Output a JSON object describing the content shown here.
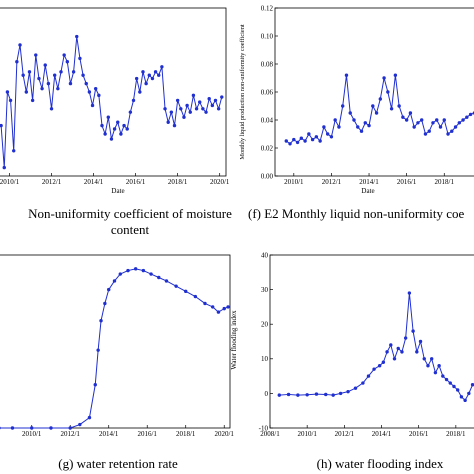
{
  "chart_data": [
    {
      "id": "e",
      "type": "line",
      "caption_line1": "Non-uniformity coefficient of moisture",
      "caption_line2": "content",
      "xlabel": "Date",
      "ylabel": "",
      "x_ticks": [
        "2010/1",
        "2012/1",
        "2014/1",
        "2016/1",
        "2018/1",
        "2020/1"
      ],
      "y_ticks": [],
      "xlim": [
        2009.5,
        2020.3
      ],
      "ylim": [
        0,
        1
      ],
      "grid": false,
      "color": "#1f2fd0",
      "series": [
        {
          "x": [
            2009.6,
            2009.75,
            2009.9,
            2010.05,
            2010.2,
            2010.35,
            2010.5,
            2010.65,
            2010.8,
            2010.95,
            2011.1,
            2011.25,
            2011.4,
            2011.55,
            2011.7,
            2011.85,
            2012.0,
            2012.15,
            2012.3,
            2012.45,
            2012.6,
            2012.75,
            2012.9,
            2013.05,
            2013.2,
            2013.35,
            2013.5,
            2013.65,
            2013.8,
            2013.95,
            2014.1,
            2014.25,
            2014.4,
            2014.55,
            2014.7,
            2014.85,
            2015.0,
            2015.15,
            2015.3,
            2015.45,
            2015.6,
            2015.75,
            2015.9,
            2016.05,
            2016.2,
            2016.35,
            2016.5,
            2016.65,
            2016.8,
            2016.95,
            2017.1,
            2017.25,
            2017.4,
            2017.55,
            2017.7,
            2017.85,
            2018.0,
            2018.15,
            2018.3,
            2018.45,
            2018.6,
            2018.75,
            2018.9,
            2019.05,
            2019.2,
            2019.35,
            2019.5,
            2019.65,
            2019.8,
            2019.95,
            2020.1
          ],
          "y": [
            0.3,
            0.05,
            0.5,
            0.45,
            0.15,
            0.68,
            0.78,
            0.6,
            0.5,
            0.62,
            0.45,
            0.72,
            0.58,
            0.52,
            0.66,
            0.55,
            0.4,
            0.6,
            0.52,
            0.62,
            0.72,
            0.68,
            0.55,
            0.62,
            0.83,
            0.7,
            0.6,
            0.55,
            0.5,
            0.42,
            0.52,
            0.48,
            0.3,
            0.25,
            0.35,
            0.22,
            0.28,
            0.32,
            0.25,
            0.3,
            0.28,
            0.38,
            0.45,
            0.58,
            0.5,
            0.62,
            0.55,
            0.6,
            0.58,
            0.62,
            0.6,
            0.65,
            0.4,
            0.32,
            0.38,
            0.3,
            0.45,
            0.4,
            0.35,
            0.42,
            0.38,
            0.48,
            0.4,
            0.44,
            0.4,
            0.38,
            0.46,
            0.42,
            0.45,
            0.4,
            0.47
          ]
        }
      ]
    },
    {
      "id": "f",
      "type": "line",
      "caption": "(f) E2 Monthly liquid non-uniformity coe",
      "xlabel": "Date",
      "ylabel": "Monthly liquid production non-uniformity coefficient",
      "x_ticks": [
        "2010/1",
        "2012/1",
        "2014/1",
        "2016/1",
        "2018/1"
      ],
      "y_ticks": [
        "0.00",
        "0.02",
        "0.04",
        "0.06",
        "0.08",
        "0.10",
        "0.12"
      ],
      "xlim": [
        2009.0,
        2019.9
      ],
      "ylim": [
        0,
        0.12
      ],
      "grid": false,
      "color": "#1f2fd0",
      "series": [
        {
          "x": [
            2009.6,
            2009.8,
            2010.0,
            2010.2,
            2010.4,
            2010.6,
            2010.8,
            2011.0,
            2011.2,
            2011.4,
            2011.6,
            2011.8,
            2012.0,
            2012.2,
            2012.4,
            2012.6,
            2012.8,
            2013.0,
            2013.2,
            2013.4,
            2013.6,
            2013.8,
            2014.0,
            2014.2,
            2014.4,
            2014.6,
            2014.8,
            2015.0,
            2015.2,
            2015.4,
            2015.6,
            2015.8,
            2016.0,
            2016.2,
            2016.4,
            2016.6,
            2016.8,
            2017.0,
            2017.2,
            2017.4,
            2017.6,
            2017.8,
            2018.0,
            2018.2,
            2018.4,
            2018.6,
            2018.8,
            2019.0,
            2019.2,
            2019.4,
            2019.6
          ],
          "y": [
            0.025,
            0.023,
            0.026,
            0.024,
            0.027,
            0.025,
            0.03,
            0.026,
            0.028,
            0.025,
            0.035,
            0.03,
            0.028,
            0.04,
            0.035,
            0.05,
            0.072,
            0.045,
            0.04,
            0.035,
            0.032,
            0.038,
            0.036,
            0.05,
            0.045,
            0.055,
            0.07,
            0.06,
            0.048,
            0.072,
            0.05,
            0.042,
            0.04,
            0.045,
            0.035,
            0.038,
            0.04,
            0.03,
            0.032,
            0.038,
            0.04,
            0.035,
            0.04,
            0.03,
            0.032,
            0.035,
            0.038,
            0.04,
            0.042,
            0.044,
            0.045
          ]
        }
      ]
    },
    {
      "id": "g",
      "type": "line",
      "caption": "(g) water retention rate",
      "xlabel": "",
      "ylabel": "",
      "x_ticks": [
        "2010/1",
        "2012/1",
        "2014/1",
        "2016/1",
        "2018/1",
        "2020/1"
      ],
      "y_ticks": [],
      "xlim": [
        2008.3,
        2020.3
      ],
      "ylim": [
        0,
        1
      ],
      "grid": false,
      "color": "#1f2fd0",
      "series": [
        {
          "x": [
            2008.3,
            2009.0,
            2010.0,
            2011.0,
            2012.0,
            2012.5,
            2013.0,
            2013.3,
            2013.45,
            2013.6,
            2013.8,
            2014.0,
            2014.3,
            2014.6,
            2015.0,
            2015.4,
            2015.8,
            2016.2,
            2016.6,
            2017.0,
            2017.5,
            2018.0,
            2018.5,
            2019.0,
            2019.4,
            2019.7,
            2020.0,
            2020.2
          ],
          "y": [
            0.0,
            0.0,
            0.0,
            0.0,
            0.0,
            0.02,
            0.06,
            0.25,
            0.45,
            0.62,
            0.72,
            0.8,
            0.85,
            0.89,
            0.91,
            0.92,
            0.91,
            0.89,
            0.87,
            0.85,
            0.82,
            0.79,
            0.76,
            0.72,
            0.7,
            0.67,
            0.69,
            0.7
          ]
        }
      ]
    },
    {
      "id": "h",
      "type": "line",
      "caption": "(h) water flooding index",
      "xlabel": "",
      "ylabel": "Water flooding index",
      "x_ticks": [
        "2008/1",
        "2010/1",
        "2012/1",
        "2014/1",
        "2016/1",
        "2018/1"
      ],
      "y_ticks": [
        "-10",
        "0",
        "10",
        "20",
        "30",
        "40"
      ],
      "xlim": [
        2008.0,
        2019.3
      ],
      "ylim": [
        -10,
        40
      ],
      "grid": false,
      "color": "#1f2fd0",
      "series": [
        {
          "x": [
            2008.5,
            2009.0,
            2009.5,
            2010.0,
            2010.5,
            2011.0,
            2011.4,
            2011.8,
            2012.2,
            2012.6,
            2013.0,
            2013.3,
            2013.6,
            2013.9,
            2014.1,
            2014.3,
            2014.5,
            2014.7,
            2014.9,
            2015.1,
            2015.3,
            2015.5,
            2015.7,
            2015.9,
            2016.1,
            2016.3,
            2016.5,
            2016.7,
            2016.9,
            2017.1,
            2017.3,
            2017.5,
            2017.7,
            2017.9,
            2018.1,
            2018.3,
            2018.5,
            2018.7,
            2018.9,
            2019.1
          ],
          "y": [
            -0.5,
            -0.3,
            -0.5,
            -0.4,
            -0.2,
            -0.3,
            -0.5,
            0.0,
            0.5,
            1.5,
            3.0,
            5.0,
            7.0,
            8.0,
            9.0,
            12.0,
            14.0,
            10.0,
            13.0,
            12.0,
            16.0,
            29.0,
            18.0,
            12.0,
            15.0,
            10.0,
            8.0,
            10.0,
            6.0,
            8.0,
            5.0,
            4.0,
            3.0,
            2.0,
            1.0,
            -1.0,
            -2.0,
            0.0,
            2.5,
            3.0
          ]
        }
      ]
    }
  ]
}
